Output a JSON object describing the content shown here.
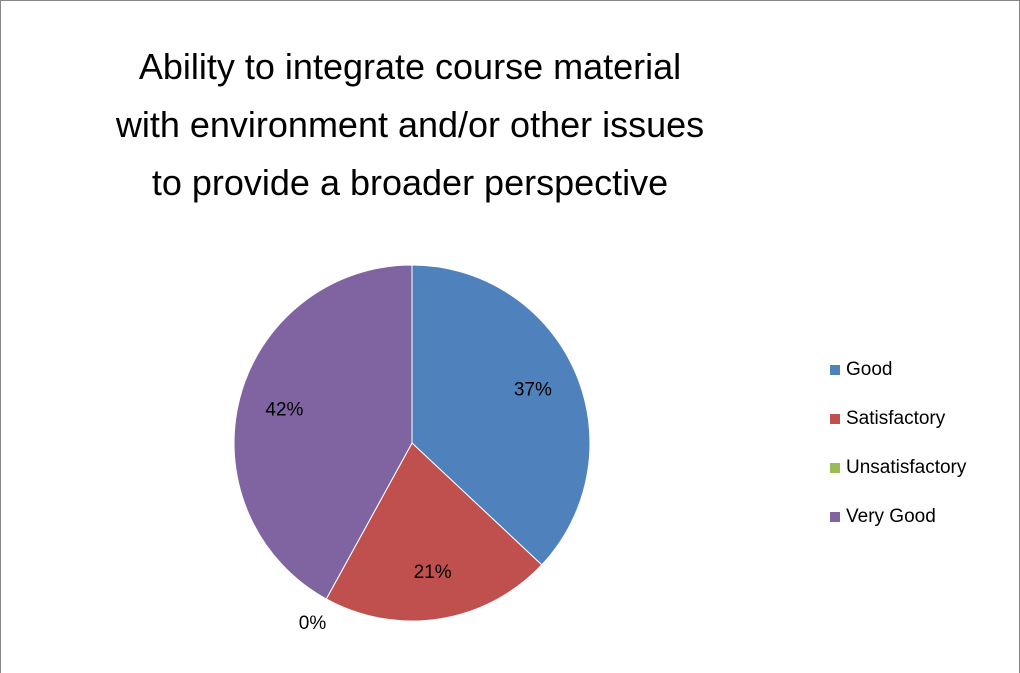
{
  "chart_data": {
    "type": "pie",
    "title": "Ability to integrate course material with environment and/or other issues to provide a broader perspective",
    "categories": [
      "Good",
      "Satisfactory",
      "Unsatisfactory",
      "Very Good"
    ],
    "values": [
      37,
      21,
      0,
      42
    ],
    "value_labels": [
      "37%",
      "21%",
      "0%",
      "42%"
    ],
    "colors": [
      "#4f81bd",
      "#c0504d",
      "#9bbb59",
      "#8064a2"
    ],
    "legend": "right"
  }
}
